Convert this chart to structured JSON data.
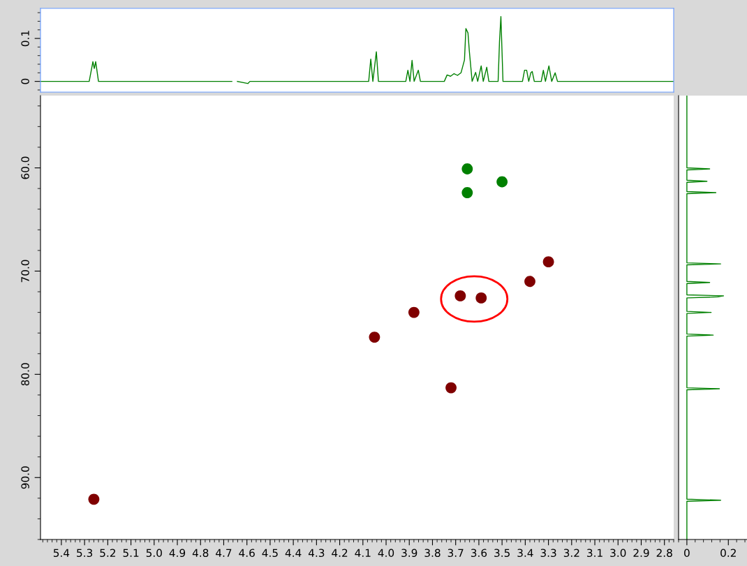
{
  "chart_data": [
    {
      "type": "line",
      "xlim": [
        5.49,
        2.76
      ],
      "ylim": [
        -0.025,
        0.17
      ],
      "yticks": [
        0,
        0.1
      ],
      "tick_labels": "y",
      "grid": false,
      "legend": false,
      "series": [
        {
          "color": "#008000",
          "x": [
            5.49,
            5.28,
            5.264,
            5.258,
            5.252,
            5.24,
            4.677,
            4.665,
            4.659,
            4.65,
            4.641,
            4.596,
            4.587,
            4.075,
            4.066,
            4.057,
            4.042,
            4.033,
            3.915,
            3.906,
            3.897,
            3.888,
            3.879,
            3.861,
            3.852,
            3.749,
            3.737,
            3.722,
            3.707,
            3.692,
            3.677,
            3.662,
            3.656,
            3.647,
            3.641,
            3.629,
            3.614,
            3.605,
            3.59,
            3.581,
            3.566,
            3.557,
            3.517,
            3.511,
            3.505,
            3.496,
            3.412,
            3.403,
            3.394,
            3.385,
            3.376,
            3.37,
            3.361,
            3.331,
            3.322,
            3.313,
            3.298,
            3.286,
            3.271,
            3.261,
            2.76
          ],
          "values": [
            0,
            0,
            0.046,
            0.03,
            0.046,
            0,
            0,
            0,
            null,
            null,
            0,
            -0.005,
            0,
            0,
            0.052,
            0,
            0.069,
            0,
            0,
            0.026,
            0,
            0.049,
            0,
            0.026,
            0,
            0,
            0.015,
            0.012,
            0.018,
            0.014,
            0.02,
            0.05,
            0.123,
            0.113,
            0.07,
            0,
            0.021,
            0,
            0.036,
            0,
            0.033,
            0,
            0,
            0.093,
            0.151,
            0,
            0,
            0.026,
            0.026,
            0,
            0.02,
            0.023,
            0,
            0,
            0.026,
            0,
            0.036,
            0,
            0.02,
            0,
            0
          ]
        }
      ]
    },
    {
      "type": "scatter",
      "xlim": [
        5.49,
        2.76
      ],
      "ylim": [
        96,
        53
      ],
      "marker": "circle",
      "grid": false,
      "legend": false,
      "xticks": [
        5.4,
        5.3,
        5.2,
        5.1,
        {
          "value": 5,
          "label": "5.0"
        },
        4.9,
        4.8,
        4.7,
        4.6,
        4.5,
        4.4,
        4.3,
        4.2,
        4.1,
        {
          "value": 4,
          "label": "4.0"
        },
        3.9,
        3.8,
        3.7,
        3.6,
        3.5,
        3.4,
        3.3,
        3.2,
        3.1,
        {
          "value": 3,
          "label": "3.0"
        },
        2.9,
        2.8
      ],
      "yticks": [
        {
          "value": 60,
          "label": "60.0"
        },
        {
          "value": 70,
          "label": "70.0"
        },
        {
          "value": 80,
          "label": "80.0"
        },
        {
          "value": 90,
          "label": "90.0"
        }
      ],
      "series": [
        {
          "color": "#008000",
          "x": [
            3.65,
            3.5,
            3.65
          ],
          "values": [
            60.1,
            61.35,
            62.4
          ]
        },
        {
          "color": "#800000",
          "x": [
            3.3,
            3.38,
            3.68,
            3.59,
            3.88,
            4.05,
            3.72,
            5.26
          ],
          "values": [
            69.1,
            71.0,
            72.4,
            72.6,
            74.0,
            76.4,
            81.3,
            92.1
          ]
        }
      ]
    },
    {
      "type": "line",
      "xlim": [
        -0.04,
        0.29
      ],
      "ylim": [
        96,
        53
      ],
      "xticks": [
        0,
        0.2
      ],
      "tick_labels": "x",
      "grid": false,
      "legend": false,
      "series": [
        {
          "color": "#008000",
          "x": [
            0,
            0,
            0.11,
            0,
            0,
            0.097,
            0,
            0,
            0.14,
            0,
            0,
            0.163,
            0,
            0,
            0.11,
            0,
            0,
            0.177,
            0.15,
            0,
            0,
            0.117,
            0,
            0,
            0.127,
            0,
            0,
            0.157,
            0,
            0,
            0.163,
            0,
            0
          ],
          "values": [
            53,
            60.0,
            60.1,
            60.2,
            61.2,
            61.3,
            61.4,
            62.3,
            62.4,
            62.5,
            69.2,
            69.3,
            69.4,
            71.0,
            71.1,
            71.2,
            72.3,
            72.4,
            72.5,
            72.6,
            73.9,
            74.0,
            74.1,
            76.1,
            76.2,
            76.3,
            81.3,
            81.4,
            81.5,
            92.1,
            92.2,
            92.3,
            96
          ]
        }
      ]
    }
  ]
}
